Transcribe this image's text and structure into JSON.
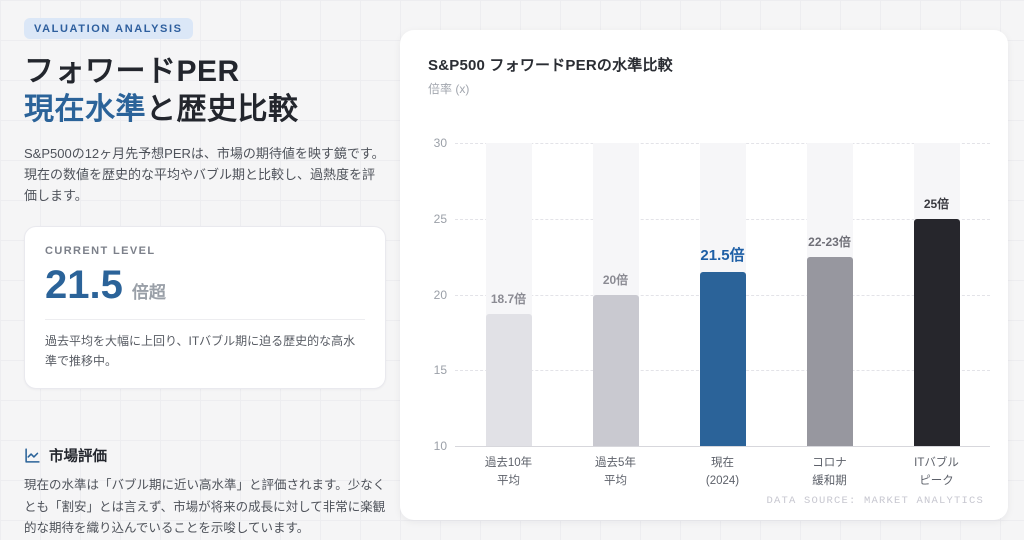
{
  "colors": {
    "accent_blue": "#2b6399",
    "badge_bg": "#dbe7f7",
    "badge_text": "#2e5f9e",
    "value_blue": "#2b6399",
    "highlight_label_blue": "#1e5fa6"
  },
  "left": {
    "badge": "VALUATION ANALYSIS",
    "title_line1": "フォワードPER",
    "title_line2_highlight": "現在水準",
    "title_line2_rest": "と歴史比較",
    "description": "S&P500の12ヶ月先予想PERは、市場の期待値を映す鏡です。現在の数値を歴史的な平均やバブル期と比較し、過熱度を評価します。",
    "card": {
      "label": "CURRENT LEVEL",
      "value": "21.5",
      "unit": "倍超",
      "note": "過去平均を大幅に上回り、ITバブル期に迫る歴史的な高水準で推移中。"
    },
    "evaluation": {
      "heading": "市場評価",
      "body": "現在の水準は「バブル期に近い高水準」と評価されます。少なくとも「割安」とは言えず、市場が将来の成長に対して非常に楽観的な期待を織り込んでいることを示唆しています。"
    }
  },
  "chart_data": {
    "type": "bar",
    "title": "S&P500 フォワードPERの水準比較",
    "ylabel": "倍率 (x)",
    "ylim": [
      10,
      30
    ],
    "yticks": [
      10,
      15,
      20,
      25,
      30
    ],
    "grid": "horizontal-dashed",
    "legend": "none",
    "categories": [
      "過去10年 平均",
      "過去5年 平均",
      "現在 (2024)",
      "コロナ 緩和期",
      "ITバブル ピーク"
    ],
    "values": [
      18.7,
      20,
      21.5,
      22.5,
      25
    ],
    "bars": [
      {
        "category_lines": [
          "過去10年",
          "平均"
        ],
        "value": 18.7,
        "label": "18.7倍",
        "color": "#e1e1e6",
        "label_color": "#8b8b93",
        "highlight": false
      },
      {
        "category_lines": [
          "過去5年",
          "平均"
        ],
        "value": 20,
        "label": "20倍",
        "color": "#c9c9d0",
        "label_color": "#8b8b93",
        "highlight": false
      },
      {
        "category_lines": [
          "現在",
          "(2024)"
        ],
        "value": 21.5,
        "label": "21.5倍",
        "color": "#2b6399",
        "label_color": "#1e5fa6",
        "highlight": true
      },
      {
        "category_lines": [
          "コロナ",
          "緩和期"
        ],
        "value": 22.5,
        "label": "22-23倍",
        "color": "#97979f",
        "label_color": "#6f6f77",
        "highlight": false
      },
      {
        "category_lines": [
          "ITバブル",
          "ピーク"
        ],
        "value": 25,
        "label": "25倍",
        "color": "#26262c",
        "label_color": "#3a3a40",
        "highlight": false
      }
    ],
    "source": "DATA SOURCE: MARKET ANALYTICS"
  }
}
